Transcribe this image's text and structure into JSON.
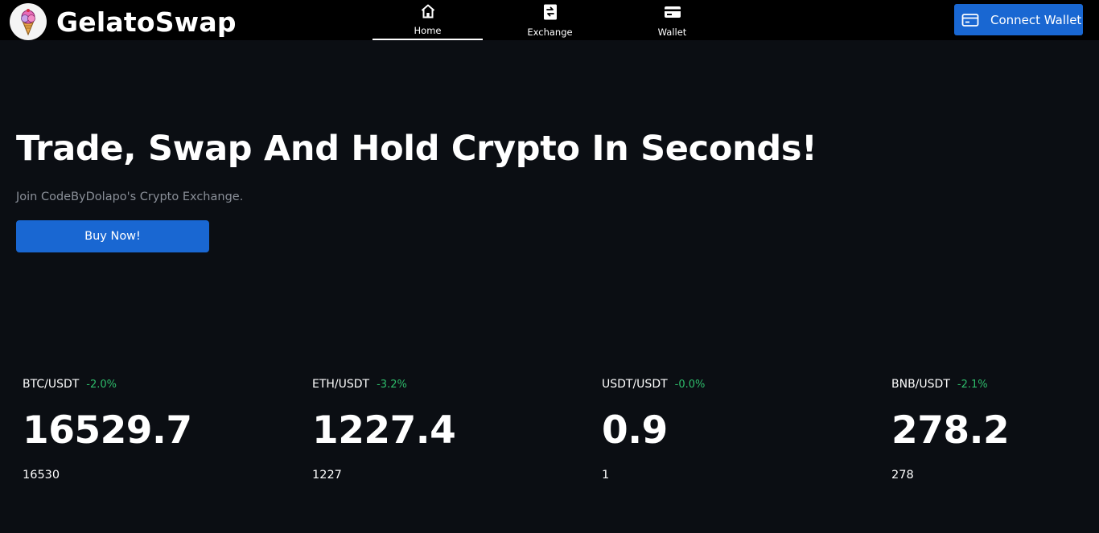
{
  "brand": {
    "name": "GelatoSwap",
    "logo_icon": "ice-cream-icon"
  },
  "nav": {
    "items": [
      {
        "label": "Home",
        "icon": "home-icon",
        "active": true
      },
      {
        "label": "Exchange",
        "icon": "exchange-icon",
        "active": false
      },
      {
        "label": "Wallet",
        "icon": "wallet-icon",
        "active": false
      }
    ]
  },
  "header": {
    "connect_label": "Connect Wallet",
    "connect_icon": "wallet-card-icon"
  },
  "hero": {
    "title": "Trade, Swap And Hold Crypto In Seconds!",
    "subtitle": "Join CodeByDolapo's Crypto Exchange.",
    "cta_label": "Buy Now!"
  },
  "tickers": [
    {
      "pair": "BTC/USDT",
      "change": "-2.0%",
      "price": "16529.7",
      "rounded": "16530"
    },
    {
      "pair": "ETH/USDT",
      "change": "-3.2%",
      "price": "1227.4",
      "rounded": "1227"
    },
    {
      "pair": "USDT/USDT",
      "change": "-0.0%",
      "price": "0.9",
      "rounded": "1"
    },
    {
      "pair": "BNB/USDT",
      "change": "-2.1%",
      "price": "278.2",
      "rounded": "278"
    }
  ],
  "colors": {
    "accent": "#1967d2",
    "positive": "#2ebd6b",
    "background": "#0b0e13",
    "topbar": "#000000"
  }
}
